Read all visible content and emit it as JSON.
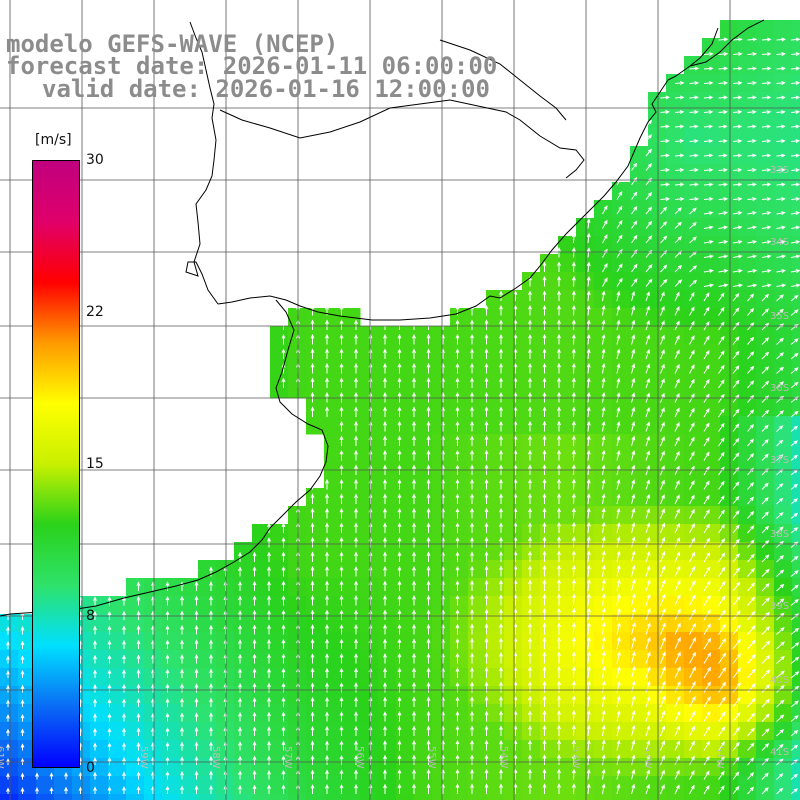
{
  "title": {
    "line1": "modelo GEFS-WAVE (NCEP)",
    "line2": "forecast date: 2026-01-11 06:00:00",
    "line3": "valid date: 2026-01-16 12:00:00"
  },
  "colorbar": {
    "unit": "[m/s]",
    "ticks": [
      "30",
      "22",
      "15",
      "8",
      "0"
    ],
    "stops": [
      "#0000ff",
      "#0a6cf5",
      "#00e0ff",
      "#2ee26a",
      "#2ad21a",
      "#c8f000",
      "#ffff00",
      "#ff9a00",
      "#ff0000",
      "#e0006a",
      "#c0007f"
    ]
  },
  "latitude_labels": [
    "33S",
    "34S",
    "35S",
    "36S",
    "37S",
    "38S",
    "39S",
    "40S",
    "41S"
  ],
  "longitude_labels": [
    "61W",
    "60W",
    "59W",
    "58W",
    "57W",
    "56W",
    "55W",
    "54W",
    "53W",
    "52W",
    "51W"
  ],
  "colors": {
    "land": "#ffffff",
    "coast": "#000000",
    "grid": "#555555",
    "arrow": "#ffffff",
    "title": "#8c8c8c"
  }
}
